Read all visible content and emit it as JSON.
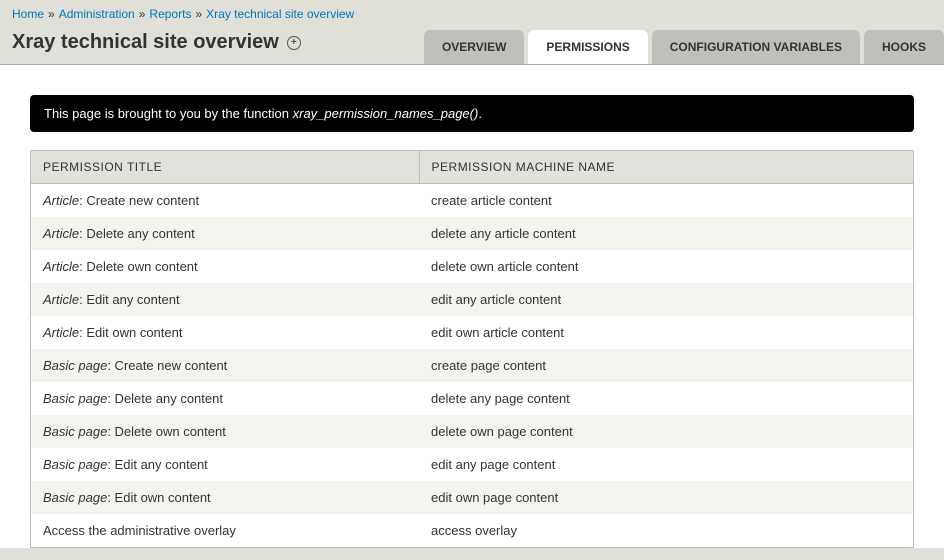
{
  "breadcrumbs": {
    "items": [
      "Home",
      "Administration",
      "Reports",
      "Xray technical site overview"
    ],
    "separator": "»"
  },
  "page_title": "Xray technical site overview",
  "tabs": {
    "items": [
      {
        "label": "OVERVIEW",
        "active": false
      },
      {
        "label": "PERMISSIONS",
        "active": true
      },
      {
        "label": "CONFIGURATION VARIABLES",
        "active": false
      },
      {
        "label": "HOOKS",
        "active": false
      }
    ]
  },
  "banner": {
    "prefix": "This page is brought to you by the function ",
    "function": "xray_permission_names_page()",
    "suffix": "."
  },
  "table": {
    "headers": {
      "title": "PERMISSION TITLE",
      "machine": "PERMISSION MACHINE NAME"
    },
    "rows": [
      {
        "prefix": "Article",
        "title": "Create new content",
        "machine": "create article content"
      },
      {
        "prefix": "Article",
        "title": "Delete any content",
        "machine": "delete any article content"
      },
      {
        "prefix": "Article",
        "title": "Delete own content",
        "machine": "delete own article content"
      },
      {
        "prefix": "Article",
        "title": "Edit any content",
        "machine": "edit any article content"
      },
      {
        "prefix": "Article",
        "title": "Edit own content",
        "machine": "edit own article content"
      },
      {
        "prefix": "Basic page",
        "title": "Create new content",
        "machine": "create page content"
      },
      {
        "prefix": "Basic page",
        "title": "Delete any content",
        "machine": "delete any page content"
      },
      {
        "prefix": "Basic page",
        "title": "Delete own content",
        "machine": "delete own page content"
      },
      {
        "prefix": "Basic page",
        "title": "Edit any content",
        "machine": "edit any page content"
      },
      {
        "prefix": "Basic page",
        "title": "Edit own content",
        "machine": "edit own page content"
      },
      {
        "prefix": "",
        "title": "Access the administrative overlay",
        "machine": "access overlay"
      }
    ]
  },
  "colors": {
    "page_bg": "#e0e0d8",
    "content_bg": "#ffffff",
    "link": "#0074bd",
    "tab_inactive_bg": "#c0c0ba",
    "tab_active_bg": "#ffffff",
    "banner_bg": "#000000",
    "banner_text": "#ffffff",
    "table_header_bg": "#e1e2dc",
    "table_row_alt_bg": "#f3f4ee",
    "table_border": "#bebfb9"
  }
}
